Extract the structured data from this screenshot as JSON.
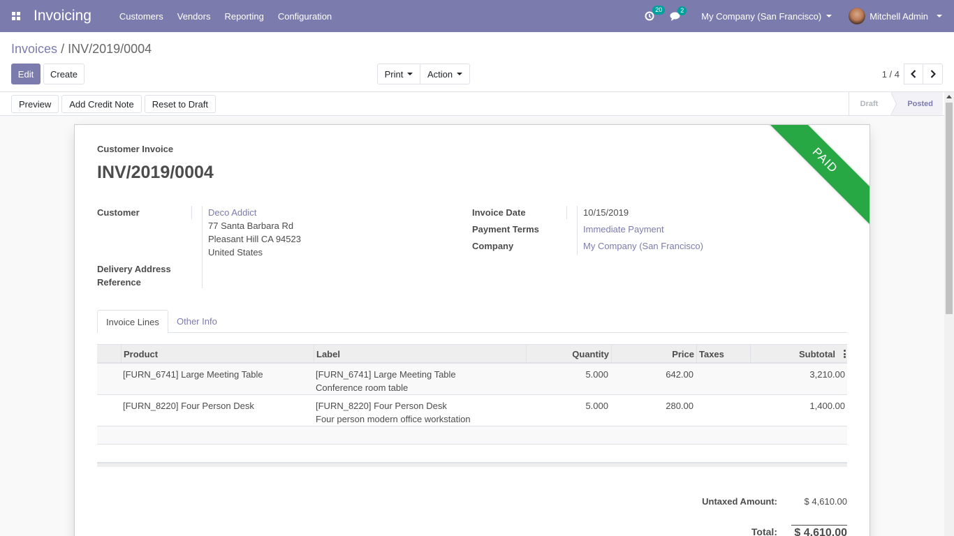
{
  "navbar": {
    "app_name": "Invoicing",
    "menu": [
      "Customers",
      "Vendors",
      "Reporting",
      "Configuration"
    ],
    "activity_count": "20",
    "message_count": "2",
    "company": "My Company (San Francisco)",
    "user": "Mitchell Admin",
    "accent_color": "#7c7bad"
  },
  "breadcrumb": {
    "parent": "Invoices",
    "separator": "/",
    "current": "INV/2019/0004"
  },
  "buttons": {
    "edit": "Edit",
    "create": "Create",
    "print": "Print",
    "action": "Action"
  },
  "pager": {
    "value": "1 / 4"
  },
  "statusbar": {
    "preview": "Preview",
    "credit_note": "Add Credit Note",
    "reset": "Reset to Draft",
    "stages": [
      "Draft",
      "Posted"
    ],
    "active_stage": "Posted"
  },
  "invoice": {
    "ribbon": "PAID",
    "ribbon_color": "#28a745",
    "type": "Customer Invoice",
    "number": "INV/2019/0004",
    "customer_label": "Customer",
    "customer_name": "Deco Addict",
    "address": [
      "77 Santa Barbara Rd",
      "Pleasant Hill CA 94523",
      "United States"
    ],
    "delivery_label": "Delivery Address",
    "reference_label": "Reference",
    "invoice_date_label": "Invoice Date",
    "invoice_date": "10/15/2019",
    "payment_terms_label": "Payment Terms",
    "payment_terms": "Immediate Payment",
    "company_label": "Company",
    "company": "My Company (San Francisco)"
  },
  "tabs": [
    "Invoice Lines",
    "Other Info"
  ],
  "lines": {
    "headers": {
      "product": "Product",
      "label": "Label",
      "quantity": "Quantity",
      "price": "Price",
      "taxes": "Taxes",
      "subtotal": "Subtotal"
    },
    "rows": [
      {
        "product": "[FURN_6741] Large Meeting Table",
        "label1": "[FURN_6741] Large Meeting Table",
        "label2": "Conference room table",
        "quantity": "5.000",
        "price": "642.00",
        "taxes": "",
        "subtotal": "3,210.00"
      },
      {
        "product": "[FURN_8220] Four Person Desk",
        "label1": "[FURN_8220] Four Person Desk",
        "label2": "Four person modern office workstation",
        "quantity": "5.000",
        "price": "280.00",
        "taxes": "",
        "subtotal": "1,400.00"
      }
    ]
  },
  "totals": {
    "untaxed_label": "Untaxed Amount:",
    "untaxed_value": "$ 4,610.00",
    "total_label": "Total:",
    "total_value": "$ 4,610.00"
  }
}
